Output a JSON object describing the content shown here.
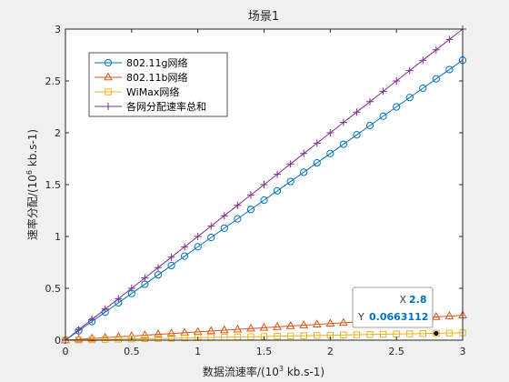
{
  "chart_data": {
    "type": "line",
    "title": "场景1",
    "xlabel_pre": "数据流速率/(10",
    "xlabel_exp": "3",
    "xlabel_post": " kb.s-1)",
    "ylabel_pre": "速率分配/(10",
    "ylabel_exp": "6",
    "ylabel_post": " kb.s-1)",
    "xlim": [
      0,
      3
    ],
    "ylim": [
      0,
      3
    ],
    "xticks": [
      "0",
      "0.5",
      "1",
      "1.5",
      "2",
      "2.5",
      "3"
    ],
    "yticks": [
      "0",
      "0.5",
      "1",
      "1.5",
      "2",
      "2.5",
      "3"
    ],
    "grid": false,
    "legend_position": "top-left",
    "x": [
      0,
      0.1,
      0.2,
      0.3,
      0.4,
      0.5,
      0.6,
      0.7,
      0.8,
      0.9,
      1.0,
      1.1,
      1.2,
      1.3,
      1.4,
      1.5,
      1.6,
      1.7,
      1.8,
      1.9,
      2.0,
      2.1,
      2.2,
      2.3,
      2.4,
      2.5,
      2.6,
      2.7,
      2.8,
      2.9,
      3.0
    ],
    "series": [
      {
        "name": "802.11g网络",
        "color": "#0072BD",
        "marker": "circle",
        "values": [
          0,
          0.09,
          0.18,
          0.27,
          0.36,
          0.45,
          0.54,
          0.63,
          0.72,
          0.81,
          0.9,
          0.99,
          1.08,
          1.17,
          1.26,
          1.35,
          1.44,
          1.53,
          1.62,
          1.71,
          1.8,
          1.89,
          1.98,
          2.07,
          2.16,
          2.25,
          2.34,
          2.43,
          2.52,
          2.61,
          2.7
        ]
      },
      {
        "name": "802.11b网络",
        "color": "#D95319",
        "marker": "triangle",
        "values": [
          0,
          0.008,
          0.016,
          0.024,
          0.032,
          0.04,
          0.048,
          0.056,
          0.064,
          0.072,
          0.08,
          0.088,
          0.096,
          0.104,
          0.112,
          0.12,
          0.128,
          0.136,
          0.144,
          0.152,
          0.16,
          0.168,
          0.176,
          0.184,
          0.192,
          0.2,
          0.208,
          0.216,
          0.224,
          0.232,
          0.24
        ]
      },
      {
        "name": "WiMax网络",
        "color": "#EDB120",
        "marker": "square",
        "values": [
          0,
          0.0024,
          0.0047,
          0.0071,
          0.0095,
          0.0118,
          0.0142,
          0.0166,
          0.0189,
          0.0213,
          0.0237,
          0.026,
          0.0284,
          0.0308,
          0.0332,
          0.0355,
          0.0379,
          0.0403,
          0.0426,
          0.045,
          0.0474,
          0.0497,
          0.0521,
          0.0545,
          0.0568,
          0.0592,
          0.0616,
          0.0639,
          0.0663112,
          0.0687,
          0.071
        ]
      },
      {
        "name": "各网分配速率总和",
        "color": "#7E2F8E",
        "marker": "plus",
        "values": [
          0,
          0.1,
          0.2,
          0.3,
          0.4,
          0.5,
          0.6,
          0.7,
          0.8,
          0.9,
          1.0,
          1.1,
          1.2,
          1.3,
          1.4,
          1.5,
          1.6,
          1.7,
          1.8,
          1.9,
          2.0,
          2.1,
          2.2,
          2.3,
          2.4,
          2.5,
          2.6,
          2.7,
          2.8,
          2.9,
          3.0
        ]
      }
    ],
    "datatip": {
      "x_label": "X",
      "x_value": "2.8",
      "y_label": "Y",
      "y_value": "0.0663112",
      "point": [
        2.8,
        0.0663112
      ],
      "value_color": "#0072BD"
    }
  }
}
